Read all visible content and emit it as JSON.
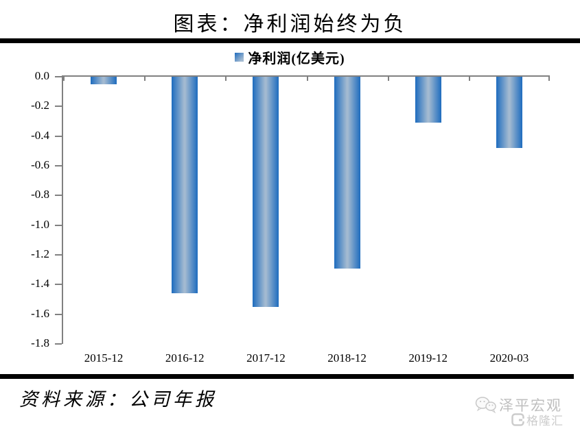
{
  "title": "图表：净利润始终为负",
  "legend": {
    "label": "净利润(亿美元)"
  },
  "source": "资料来源：公司年报",
  "watermark": {
    "line1": "泽平宏观",
    "line2": "格隆汇"
  },
  "colors": {
    "bar_edge": "#1E6CBE",
    "bar_center": "#A3BAD1",
    "axis": "#808080",
    "rule": "#000000",
    "watermark_gray": "#BFBFBF"
  },
  "chart_data": {
    "type": "bar",
    "title": "净利润(亿美元)",
    "categories": [
      "2015-12",
      "2016-12",
      "2017-12",
      "2018-12",
      "2019-12",
      "2020-03"
    ],
    "values": [
      -0.05,
      -1.46,
      -1.55,
      -1.29,
      -0.31,
      -0.48
    ],
    "xlabel": "",
    "ylabel": "",
    "ylim": [
      -1.8,
      0.0
    ],
    "ytick_labels": [
      "0.0",
      "-0.2",
      "-0.4",
      "-0.6",
      "-0.8",
      "-1.0",
      "-1.2",
      "-1.4",
      "-1.6",
      "-1.8"
    ],
    "grid": false,
    "legend_position": "top-center",
    "bar_color": "gradient-blue"
  }
}
